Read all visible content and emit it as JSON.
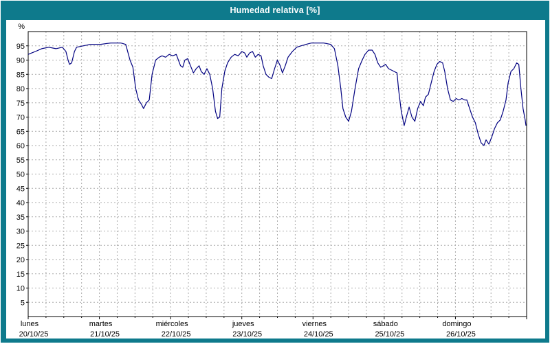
{
  "title": "Humedad relativa [%]",
  "colors": {
    "frame": "#0e7a8c",
    "panel": "#ffffff",
    "border": "#ffffff",
    "axis": "#000000",
    "grid": "#aaaaaa",
    "line": "#000080",
    "title_text": "#ffffff"
  },
  "chart_data": {
    "type": "line",
    "title": "Humedad relativa [%]",
    "ylabel": "%",
    "ylim": [
      0,
      100
    ],
    "yticks": [
      5,
      10,
      15,
      20,
      25,
      30,
      35,
      40,
      45,
      50,
      55,
      60,
      65,
      70,
      75,
      80,
      85,
      90,
      95
    ],
    "x_range_days": [
      0,
      7
    ],
    "minor_grid_days": 0.25,
    "grid": true,
    "legend": "none",
    "x_days": [
      {
        "name": "lunes",
        "date": "20/10/25"
      },
      {
        "name": "martes",
        "date": "21/10/25"
      },
      {
        "name": "miércoles",
        "date": "22/10/25"
      },
      {
        "name": "jueves",
        "date": "23/10/25"
      },
      {
        "name": "viernes",
        "date": "24/10/25"
      },
      {
        "name": "sábado",
        "date": "25/10/25"
      },
      {
        "name": "domingo",
        "date": "26/10/25"
      }
    ],
    "series": [
      {
        "name": "Humedad relativa",
        "color": "#000080",
        "points": [
          [
            0.0,
            92
          ],
          [
            0.05,
            92.5
          ],
          [
            0.1,
            93
          ],
          [
            0.19,
            94
          ],
          [
            0.29,
            94.5
          ],
          [
            0.39,
            94
          ],
          [
            0.48,
            94.5
          ],
          [
            0.53,
            93
          ],
          [
            0.56,
            90
          ],
          [
            0.58,
            88.5
          ],
          [
            0.61,
            89
          ],
          [
            0.65,
            93
          ],
          [
            0.68,
            94.5
          ],
          [
            0.77,
            95
          ],
          [
            0.87,
            95.5
          ],
          [
            1.01,
            95.5
          ],
          [
            1.16,
            96
          ],
          [
            1.3,
            96
          ],
          [
            1.37,
            95.5
          ],
          [
            1.43,
            90
          ],
          [
            1.47,
            87.5
          ],
          [
            1.51,
            80
          ],
          [
            1.55,
            76
          ],
          [
            1.59,
            74.5
          ],
          [
            1.62,
            73
          ],
          [
            1.66,
            75
          ],
          [
            1.7,
            76
          ],
          [
            1.74,
            85
          ],
          [
            1.79,
            90
          ],
          [
            1.84,
            91
          ],
          [
            1.88,
            91.5
          ],
          [
            1.93,
            91
          ],
          [
            1.98,
            92
          ],
          [
            2.03,
            91.5
          ],
          [
            2.08,
            92
          ],
          [
            2.11,
            90
          ],
          [
            2.14,
            88
          ],
          [
            2.17,
            87.5
          ],
          [
            2.2,
            90
          ],
          [
            2.24,
            90.5
          ],
          [
            2.28,
            88
          ],
          [
            2.32,
            85.5
          ],
          [
            2.36,
            87
          ],
          [
            2.4,
            88
          ],
          [
            2.43,
            86
          ],
          [
            2.47,
            85
          ],
          [
            2.51,
            87
          ],
          [
            2.55,
            85
          ],
          [
            2.59,
            80
          ],
          [
            2.63,
            72
          ],
          [
            2.66,
            69.5
          ],
          [
            2.69,
            70
          ],
          [
            2.72,
            80
          ],
          [
            2.76,
            86
          ],
          [
            2.8,
            89
          ],
          [
            2.85,
            91
          ],
          [
            2.9,
            92
          ],
          [
            2.95,
            91.5
          ],
          [
            3.0,
            93
          ],
          [
            3.04,
            92.5
          ],
          [
            3.07,
            91
          ],
          [
            3.11,
            92.5
          ],
          [
            3.15,
            93
          ],
          [
            3.19,
            91
          ],
          [
            3.23,
            92
          ],
          [
            3.27,
            91.5
          ],
          [
            3.3,
            88
          ],
          [
            3.34,
            85
          ],
          [
            3.38,
            84
          ],
          [
            3.42,
            83.5
          ],
          [
            3.46,
            87
          ],
          [
            3.5,
            90
          ],
          [
            3.54,
            88
          ],
          [
            3.57,
            85.5
          ],
          [
            3.61,
            88
          ],
          [
            3.65,
            91
          ],
          [
            3.71,
            93
          ],
          [
            3.77,
            94.5
          ],
          [
            3.83,
            95
          ],
          [
            3.9,
            95.5
          ],
          [
            3.98,
            96
          ],
          [
            4.06,
            96
          ],
          [
            4.15,
            96
          ],
          [
            4.25,
            95.5
          ],
          [
            4.3,
            94
          ],
          [
            4.35,
            88
          ],
          [
            4.39,
            80
          ],
          [
            4.42,
            73
          ],
          [
            4.46,
            70
          ],
          [
            4.5,
            68.5
          ],
          [
            4.54,
            72
          ],
          [
            4.59,
            80
          ],
          [
            4.64,
            87
          ],
          [
            4.69,
            90
          ],
          [
            4.73,
            92
          ],
          [
            4.78,
            93.5
          ],
          [
            4.83,
            93.5
          ],
          [
            4.87,
            92
          ],
          [
            4.91,
            89
          ],
          [
            4.95,
            87.5
          ],
          [
            4.99,
            88
          ],
          [
            5.02,
            88.5
          ],
          [
            5.06,
            87
          ],
          [
            5.1,
            86.5
          ],
          [
            5.14,
            86
          ],
          [
            5.18,
            85.5
          ],
          [
            5.2,
            80
          ],
          [
            5.24,
            72
          ],
          [
            5.28,
            67
          ],
          [
            5.31,
            70
          ],
          [
            5.35,
            73.5
          ],
          [
            5.39,
            70
          ],
          [
            5.43,
            68.5
          ],
          [
            5.47,
            73
          ],
          [
            5.51,
            75.5
          ],
          [
            5.55,
            74
          ],
          [
            5.58,
            77
          ],
          [
            5.62,
            78
          ],
          [
            5.66,
            82
          ],
          [
            5.7,
            86
          ],
          [
            5.74,
            88.5
          ],
          [
            5.78,
            89.5
          ],
          [
            5.82,
            89
          ],
          [
            5.85,
            86
          ],
          [
            5.89,
            80
          ],
          [
            5.93,
            76
          ],
          [
            5.97,
            75.5
          ],
          [
            6.01,
            76.5
          ],
          [
            6.05,
            76
          ],
          [
            6.09,
            76.5
          ],
          [
            6.13,
            76
          ],
          [
            6.16,
            76
          ],
          [
            6.2,
            73
          ],
          [
            6.24,
            70
          ],
          [
            6.28,
            68
          ],
          [
            6.32,
            64
          ],
          [
            6.36,
            61
          ],
          [
            6.4,
            60
          ],
          [
            6.43,
            62
          ],
          [
            6.47,
            60.5
          ],
          [
            6.51,
            63
          ],
          [
            6.55,
            66
          ],
          [
            6.59,
            68
          ],
          [
            6.63,
            69
          ],
          [
            6.67,
            72
          ],
          [
            6.71,
            76
          ],
          [
            6.74,
            82
          ],
          [
            6.78,
            86
          ],
          [
            6.82,
            87
          ],
          [
            6.86,
            89
          ],
          [
            6.89,
            88.5
          ],
          [
            6.92,
            80
          ],
          [
            6.95,
            73
          ],
          [
            6.98,
            69
          ],
          [
            6.99,
            67
          ]
        ]
      }
    ]
  }
}
